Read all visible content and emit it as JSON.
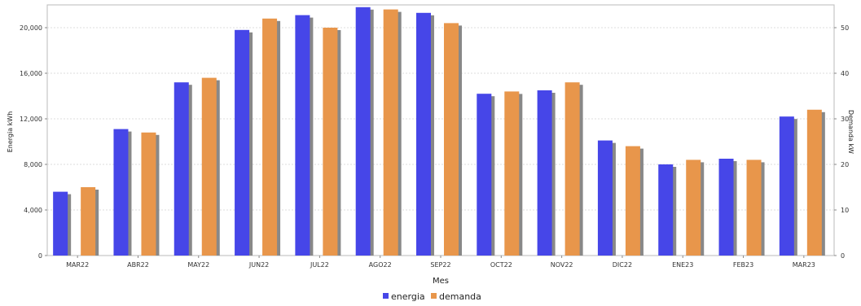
{
  "chart_data": {
    "type": "bar",
    "categories": [
      "MAR22",
      "ABR22",
      "MAY22",
      "JUN22",
      "JUL22",
      "AGO22",
      "SEP22",
      "OCT22",
      "NOV22",
      "DIC22",
      "ENE23",
      "FEB23",
      "MAR23"
    ],
    "series": [
      {
        "name": "energia",
        "axis": "left",
        "color": "#4646e8",
        "values": [
          5600,
          11100,
          15200,
          19800,
          21100,
          21800,
          21300,
          14200,
          14500,
          10100,
          8000,
          8500,
          12200
        ]
      },
      {
        "name": "demanda",
        "axis": "right",
        "color": "#e8964b",
        "values": [
          15,
          27,
          39,
          52,
          50,
          54,
          51,
          36,
          38,
          24,
          21,
          21,
          32
        ]
      }
    ],
    "xlabel": "Mes",
    "ylabel": "Energia kWh",
    "y2label": "Demanda kW",
    "ylim": [
      0,
      22000
    ],
    "y2lim": [
      0,
      55
    ],
    "yticks": [
      "0",
      "4,000",
      "8,000",
      "12,000",
      "16,000",
      "20,000"
    ],
    "y2ticks": [
      "0",
      "10",
      "20",
      "30",
      "40",
      "50"
    ],
    "grid": true,
    "legend_position": "bottom-center"
  }
}
